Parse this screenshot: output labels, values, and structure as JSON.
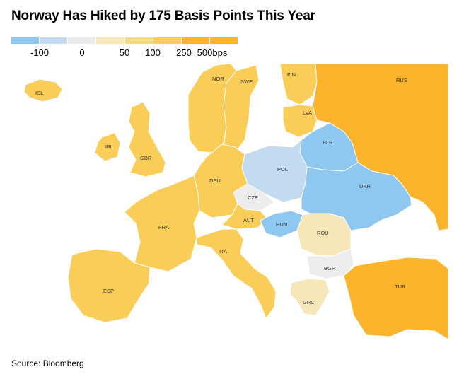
{
  "title": "Norway Has Hiked by 175 Basis Points This Year",
  "legend": {
    "colors": [
      "#8ec7f0",
      "#c2dbf0",
      "#ececec",
      "#f6e6b8",
      "#f5db83",
      "#f9cd58",
      "#fbb42b",
      "#fbb42b"
    ],
    "labels": [
      "-100",
      "0",
      "50",
      "100",
      "250",
      "500bps"
    ]
  },
  "countries": [
    {
      "code": "ISL",
      "color": "#f9cd58"
    },
    {
      "code": "IRL",
      "color": "#f9cd58"
    },
    {
      "code": "GBR",
      "color": "#f9cd58"
    },
    {
      "code": "NOR",
      "color": "#f9cd58"
    },
    {
      "code": "SWE",
      "color": "#f9cd58"
    },
    {
      "code": "FIN",
      "color": "#f9cd58"
    },
    {
      "code": "LVA",
      "color": "#f9cd58"
    },
    {
      "code": "RUS",
      "color": "#fbb42b"
    },
    {
      "code": "BLR",
      "color": "#8ec7f0"
    },
    {
      "code": "POL",
      "color": "#c2dbf0"
    },
    {
      "code": "DEU",
      "color": "#f9cd58"
    },
    {
      "code": "CZE",
      "color": "#ececec"
    },
    {
      "code": "UKR",
      "color": "#8ec7f0"
    },
    {
      "code": "FRA",
      "color": "#f9cd58"
    },
    {
      "code": "AUT",
      "color": "#f9cd58"
    },
    {
      "code": "HUN",
      "color": "#8ec7f0"
    },
    {
      "code": "ROU",
      "color": "#f6e6b8"
    },
    {
      "code": "ITA",
      "color": "#f9cd58"
    },
    {
      "code": "BGR",
      "color": "#ececec"
    },
    {
      "code": "ESP",
      "color": "#f9cd58"
    },
    {
      "code": "GRC",
      "color": "#f6e6b8"
    },
    {
      "code": "TUR",
      "color": "#fbb42b"
    }
  ],
  "source": "Source: Bloomberg"
}
